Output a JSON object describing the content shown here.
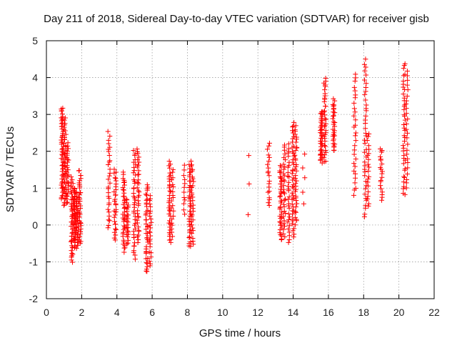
{
  "chart_data": {
    "type": "scatter",
    "title": "Day 211 of 2018, Sidereal Day-to-day VTEC variation (SDTVAR) for receiver gisb",
    "xlabel": "GPS time / hours",
    "ylabel": "SDTVAR / TECUs",
    "xlim": [
      0,
      22
    ],
    "ylim": [
      -2,
      5
    ],
    "xticks": [
      "0",
      "2",
      "4",
      "6",
      "8",
      "10",
      "12",
      "14",
      "16",
      "18",
      "20",
      "22"
    ],
    "yticks": [
      "-2",
      "-1",
      "0",
      "1",
      "2",
      "3",
      "4",
      "5"
    ],
    "grid": true,
    "marker": "plus",
    "series": [
      {
        "name": "SDTVAR",
        "color": "#ff0000",
        "clusters": [
          {
            "x": 0.9,
            "ymin": 0.7,
            "ymax": 3.2,
            "n": 55
          },
          {
            "x": 1.05,
            "ymin": 0.5,
            "ymax": 2.9,
            "n": 40
          },
          {
            "x": 1.2,
            "ymin": 0.6,
            "ymax": 2.2,
            "n": 30
          },
          {
            "x": 1.45,
            "ymin": -1.0,
            "ymax": 1.3,
            "n": 45
          },
          {
            "x": 1.6,
            "ymin": -0.6,
            "ymax": 1.0,
            "n": 45
          },
          {
            "x": 1.75,
            "ymin": -0.6,
            "ymax": 0.9,
            "n": 40
          },
          {
            "x": 1.9,
            "ymin": -0.5,
            "ymax": 1.5,
            "n": 35
          },
          {
            "x": 3.55,
            "ymin": -0.1,
            "ymax": 2.5,
            "n": 30
          },
          {
            "x": 3.9,
            "ymin": -0.4,
            "ymax": 1.5,
            "n": 30
          },
          {
            "x": 4.4,
            "ymin": -0.7,
            "ymax": 1.4,
            "n": 40
          },
          {
            "x": 4.6,
            "ymin": -0.5,
            "ymax": 0.7,
            "n": 25
          },
          {
            "x": 5.0,
            "ymin": -0.9,
            "ymax": 2.0,
            "n": 40
          },
          {
            "x": 5.2,
            "ymin": -0.5,
            "ymax": 2.1,
            "n": 35
          },
          {
            "x": 5.7,
            "ymin": -1.3,
            "ymax": 1.1,
            "n": 40
          },
          {
            "x": 5.9,
            "ymin": -1.1,
            "ymax": 0.8,
            "n": 25
          },
          {
            "x": 7.0,
            "ymin": -0.5,
            "ymax": 1.7,
            "n": 35
          },
          {
            "x": 7.15,
            "ymin": -0.3,
            "ymax": 1.5,
            "n": 20
          },
          {
            "x": 7.85,
            "ymin": 0.3,
            "ymax": 1.6,
            "n": 12
          },
          {
            "x": 8.15,
            "ymin": -0.6,
            "ymax": 1.7,
            "n": 40
          },
          {
            "x": 8.3,
            "ymin": -0.5,
            "ymax": 1.6,
            "n": 25
          },
          {
            "x": 11.45,
            "ymin": 0.3,
            "ymax": 1.9,
            "n": 3
          },
          {
            "x": 12.6,
            "ymin": 0.5,
            "ymax": 2.2,
            "n": 20
          },
          {
            "x": 13.3,
            "ymin": -0.4,
            "ymax": 1.6,
            "n": 40
          },
          {
            "x": 13.5,
            "ymin": -0.3,
            "ymax": 2.2,
            "n": 30
          },
          {
            "x": 13.75,
            "ymin": -0.5,
            "ymax": 2.2,
            "n": 30
          },
          {
            "x": 14.0,
            "ymin": -0.3,
            "ymax": 2.8,
            "n": 40
          },
          {
            "x": 14.15,
            "ymin": 0.0,
            "ymax": 2.7,
            "n": 35
          },
          {
            "x": 14.6,
            "ymin": 0.6,
            "ymax": 1.9,
            "n": 5
          },
          {
            "x": 15.6,
            "ymin": 1.7,
            "ymax": 3.1,
            "n": 45
          },
          {
            "x": 15.8,
            "ymin": 1.7,
            "ymax": 4.0,
            "n": 35
          },
          {
            "x": 16.3,
            "ymin": 2.0,
            "ymax": 3.4,
            "n": 30
          },
          {
            "x": 17.5,
            "ymin": 0.8,
            "ymax": 4.1,
            "n": 30
          },
          {
            "x": 18.1,
            "ymin": 0.2,
            "ymax": 4.5,
            "n": 40
          },
          {
            "x": 18.25,
            "ymin": 0.5,
            "ymax": 2.5,
            "n": 20
          },
          {
            "x": 19.0,
            "ymin": 0.7,
            "ymax": 2.1,
            "n": 20
          },
          {
            "x": 20.3,
            "ymin": 0.8,
            "ymax": 4.4,
            "n": 40
          },
          {
            "x": 20.45,
            "ymin": 1.0,
            "ymax": 4.2,
            "n": 25
          }
        ]
      }
    ]
  }
}
